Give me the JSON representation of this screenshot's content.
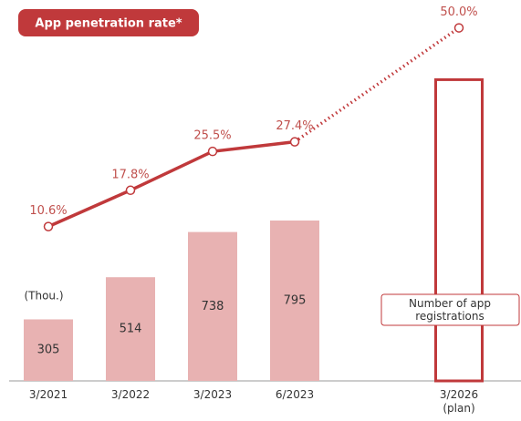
{
  "chart_data": {
    "type": "bar",
    "title": "App penetration rate*",
    "y_label": "(Thou.)",
    "categories": [
      "3/2021",
      "3/2022",
      "3/2023",
      "6/2023",
      "3/2026\n(plan)"
    ],
    "ylim": [
      0,
      1800
    ],
    "y2lim": [
      -20,
      52
    ],
    "legend": "right",
    "series": [
      {
        "name": "Number of app registrations",
        "type": "bar",
        "color": "#e8b2b2",
        "outline_color": "#c0393b",
        "values": [
          305,
          514,
          738,
          795,
          1500
        ],
        "value_labels": [
          "305",
          "514",
          "738",
          "795",
          null
        ],
        "outlined": [
          false,
          false,
          false,
          false,
          true
        ]
      },
      {
        "type": "line",
        "axis": "y2",
        "color": "#c0393b",
        "label_color": "#c0504d",
        "values": [
          10.6,
          17.8,
          25.5,
          27.4,
          50.0
        ],
        "value_labels": [
          "10.6%",
          "17.8%",
          "25.5%",
          "27.4%",
          "50.0%"
        ],
        "dotted_from": 3
      }
    ]
  }
}
